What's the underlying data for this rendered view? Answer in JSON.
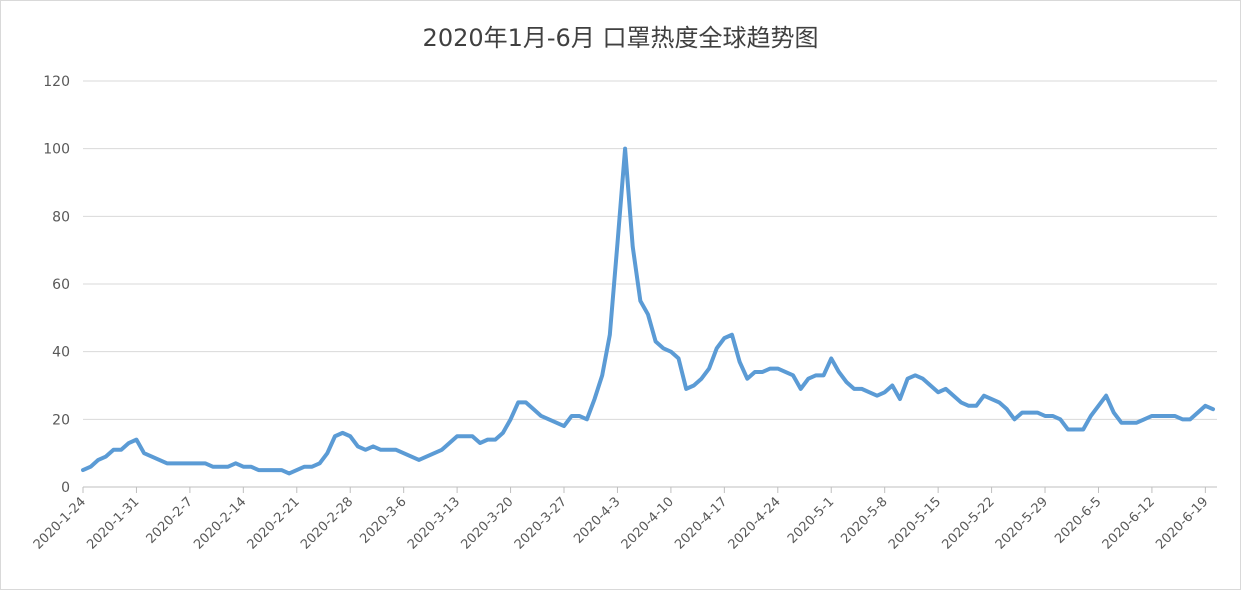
{
  "chart_data": {
    "type": "line",
    "title": "2020年1月-6月 口罩热度全球趋势图",
    "xlabel": "",
    "ylabel": "",
    "ylim": [
      0,
      120
    ],
    "yticks": [
      0,
      20,
      40,
      60,
      80,
      100,
      120
    ],
    "grid": true,
    "line_color": "#5B9BD5",
    "start_date": "2020-01-24",
    "x_tick_labels": [
      "2020-1-24",
      "2020-1-31",
      "2020-2-7",
      "2020-2-14",
      "2020-2-21",
      "2020-2-28",
      "2020-3-6",
      "2020-3-13",
      "2020-3-20",
      "2020-3-27",
      "2020-4-3",
      "2020-4-10",
      "2020-4-17",
      "2020-4-24",
      "2020-5-1",
      "2020-5-8",
      "2020-5-15",
      "2020-5-22",
      "2020-5-29",
      "2020-6-5",
      "2020-6-12",
      "2020-6-19"
    ],
    "series": [
      {
        "values": [
          5,
          6,
          8,
          9,
          11,
          11,
          13,
          14,
          10,
          9,
          8,
          7,
          7,
          7,
          7,
          7,
          7,
          6,
          6,
          6,
          7,
          6,
          6,
          5,
          5,
          5,
          5,
          4,
          5,
          6,
          6,
          7,
          10,
          15,
          16,
          15,
          12,
          11,
          12,
          11,
          11,
          11,
          10,
          9,
          8,
          9,
          10,
          11,
          13,
          15,
          15,
          15,
          13,
          14,
          14,
          16,
          20,
          25,
          25,
          23,
          21,
          20,
          19,
          18,
          21,
          21,
          20,
          26,
          33,
          45,
          72,
          100,
          71,
          55,
          51,
          43,
          41,
          40,
          38,
          29,
          30,
          32,
          35,
          41,
          44,
          45,
          37,
          32,
          34,
          34,
          35,
          35,
          34,
          33,
          29,
          32,
          33,
          33,
          38,
          34,
          31,
          29,
          29,
          28,
          27,
          28,
          30,
          26,
          32,
          33,
          32,
          30,
          28,
          29,
          27,
          25,
          24,
          24,
          27,
          26,
          25,
          23,
          20,
          22,
          22,
          22,
          21,
          21,
          20,
          17,
          17,
          17,
          21,
          24,
          27,
          22,
          19,
          19,
          19,
          20,
          21,
          21,
          21,
          21,
          20,
          20,
          22,
          24,
          23
        ]
      }
    ]
  }
}
